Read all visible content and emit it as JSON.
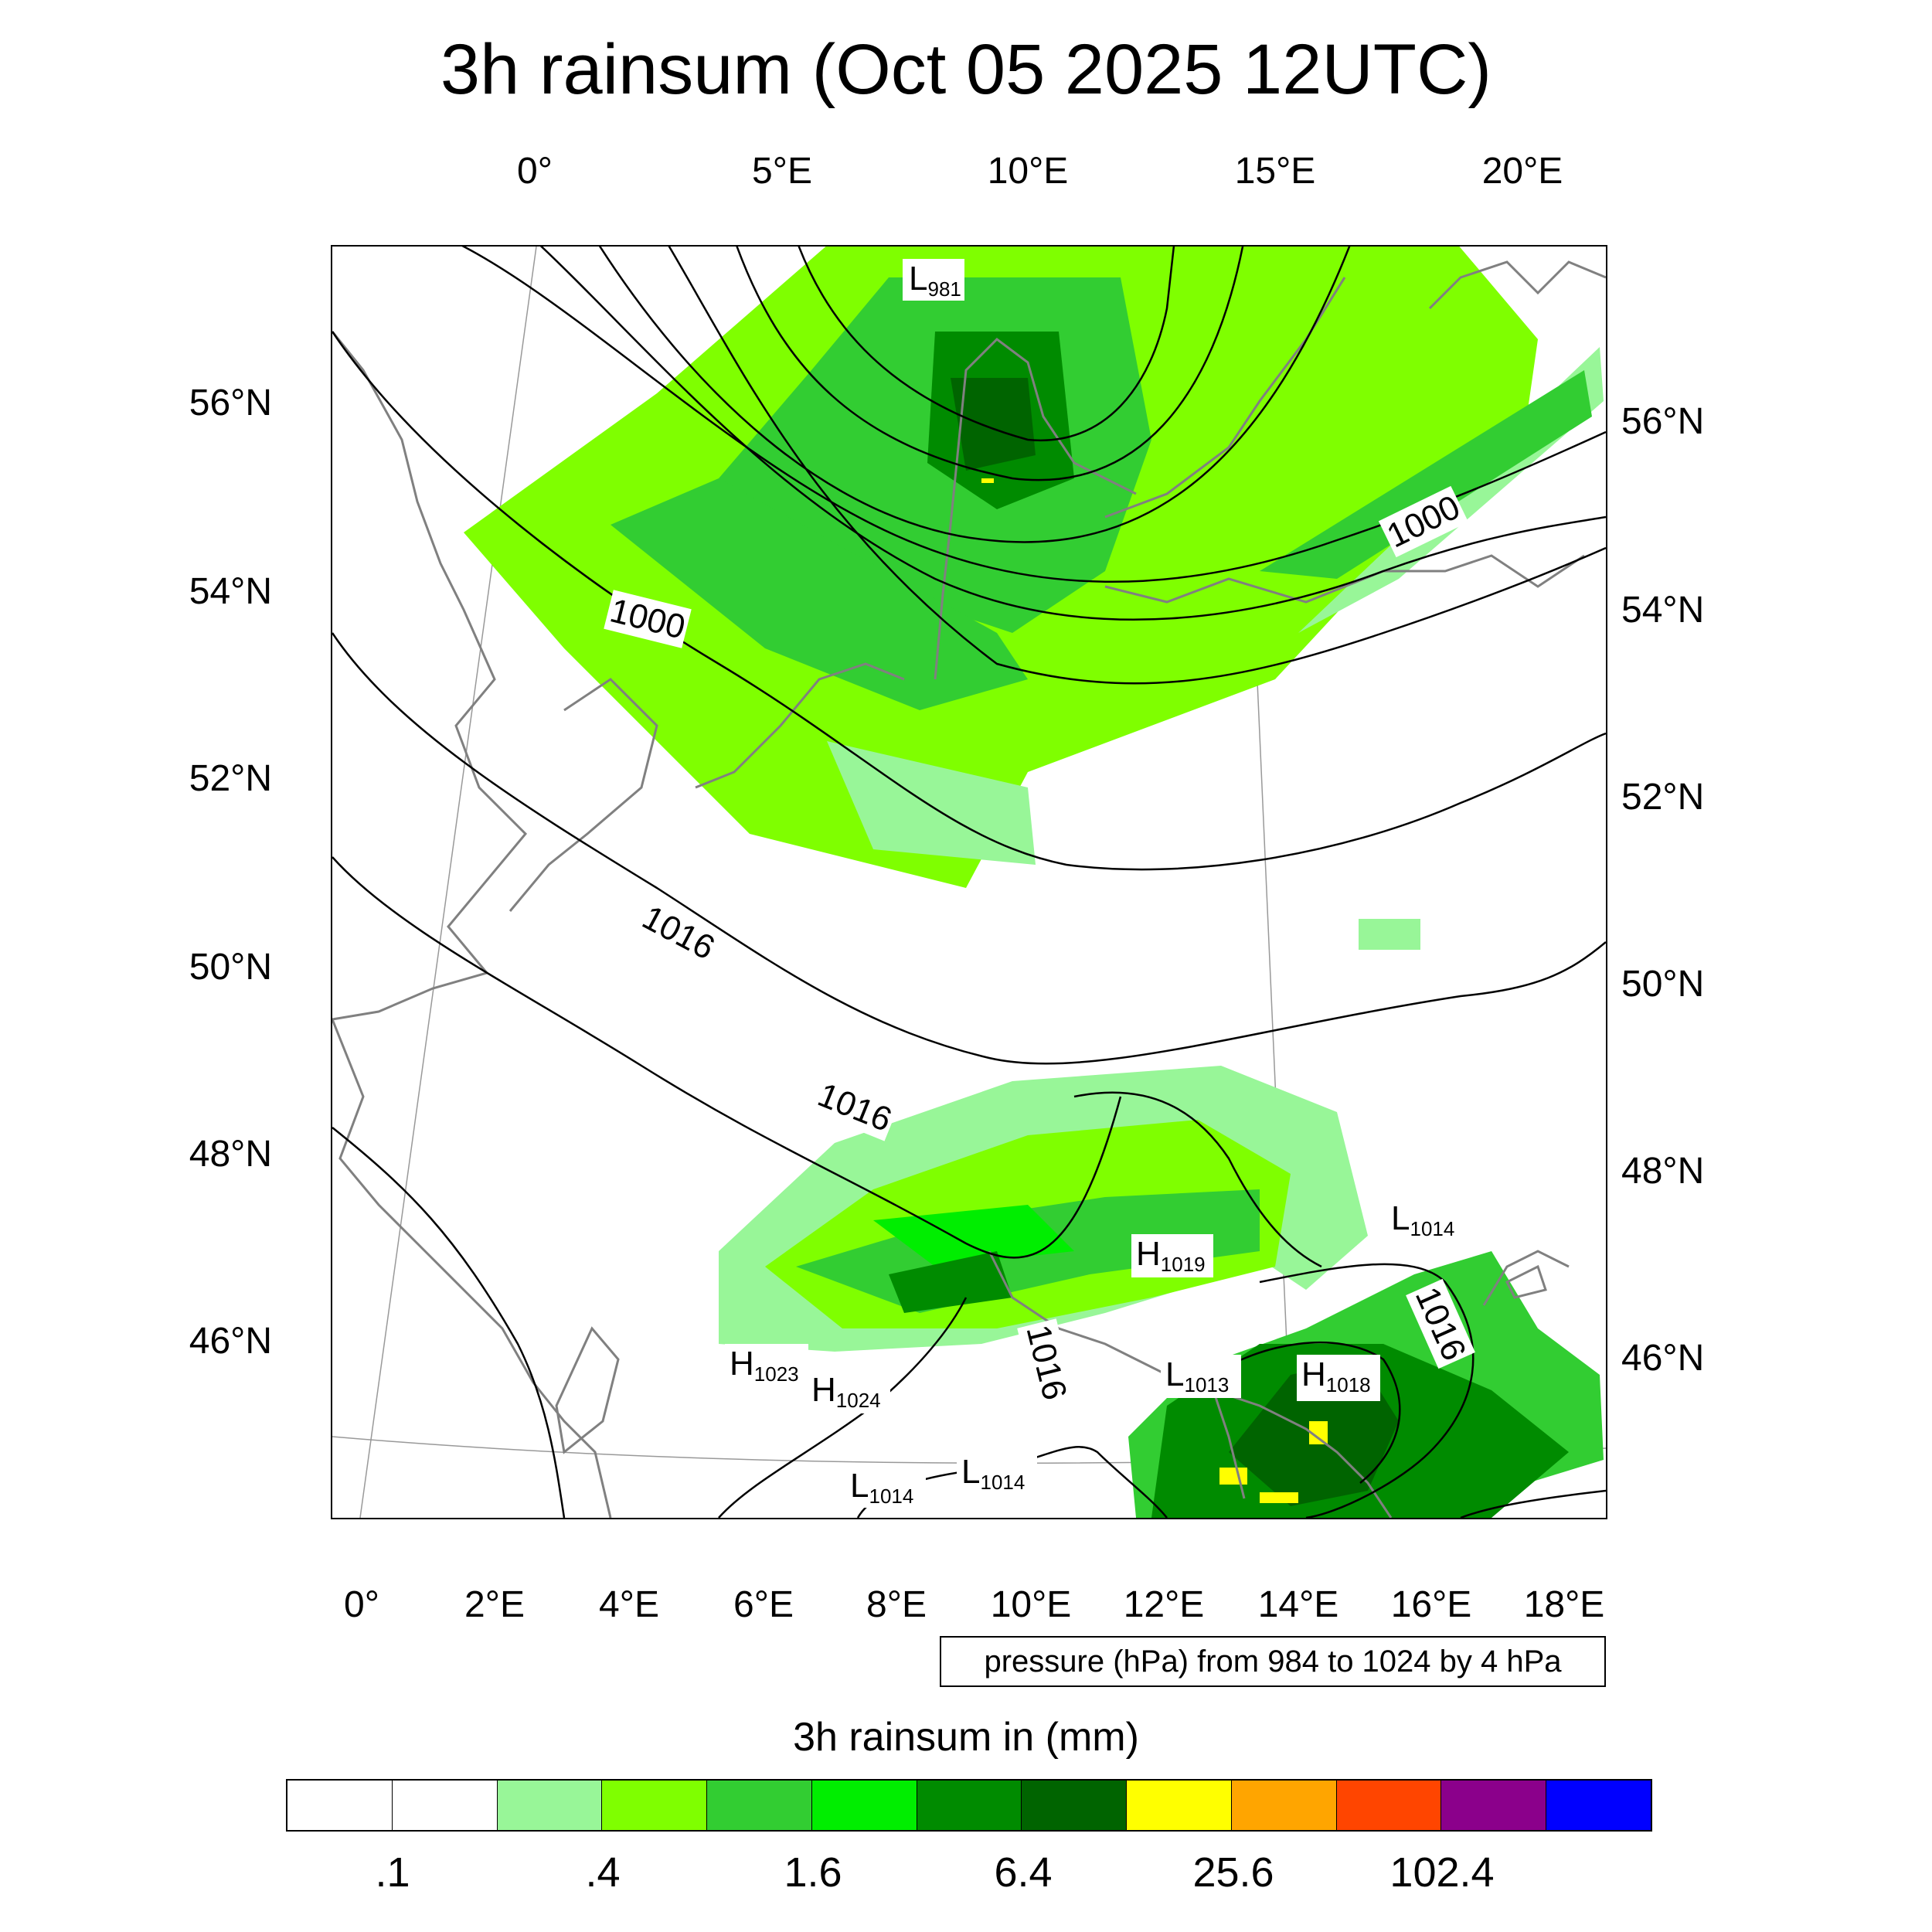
{
  "title": "3h rainsum (Oct 05 2025 12UTC)",
  "map": {
    "top_lon_labels": [
      "0°",
      "5°E",
      "10°E",
      "15°E",
      "20°E"
    ],
    "bottom_lon_labels": [
      "0°",
      "2°E",
      "4°E",
      "6°E",
      "8°E",
      "10°E",
      "12°E",
      "14°E",
      "16°E",
      "18°E"
    ],
    "left_lat_labels": [
      "56°N",
      "54°N",
      "52°N",
      "50°N",
      "48°N",
      "46°N"
    ],
    "right_lat_labels": [
      "56°N",
      "54°N",
      "52°N",
      "50°N",
      "48°N",
      "46°N"
    ],
    "isobar_labels": [
      "1000",
      "1000",
      "1016",
      "1016",
      "1016",
      "1016"
    ],
    "pressure_centers": [
      {
        "type": "L",
        "value": "981"
      },
      {
        "type": "L",
        "value": "1014"
      },
      {
        "type": "H",
        "value": "1019"
      },
      {
        "type": "H",
        "value": "1023"
      },
      {
        "type": "H",
        "value": "1024"
      },
      {
        "type": "L",
        "value": "1013"
      },
      {
        "type": "H",
        "value": "1018"
      },
      {
        "type": "L",
        "value": "1014"
      },
      {
        "type": "L",
        "value": "1014"
      }
    ]
  },
  "info_box": "pressure (hPa) from 984 to 1024 by 4 hPa",
  "colorbar": {
    "title": "3h rainsum in (mm)",
    "labels": [
      ".1",
      ".4",
      "1.6",
      "6.4",
      "25.6",
      "102.4"
    ],
    "colors": [
      "#ffffff",
      "#ffffff",
      "#98f698",
      "#7fff00",
      "#32cd32",
      "#00ee00",
      "#008b00",
      "#006400",
      "#ffff00",
      "#ffa500",
      "#ff4500",
      "#8b008b",
      "#0000ff"
    ]
  }
}
